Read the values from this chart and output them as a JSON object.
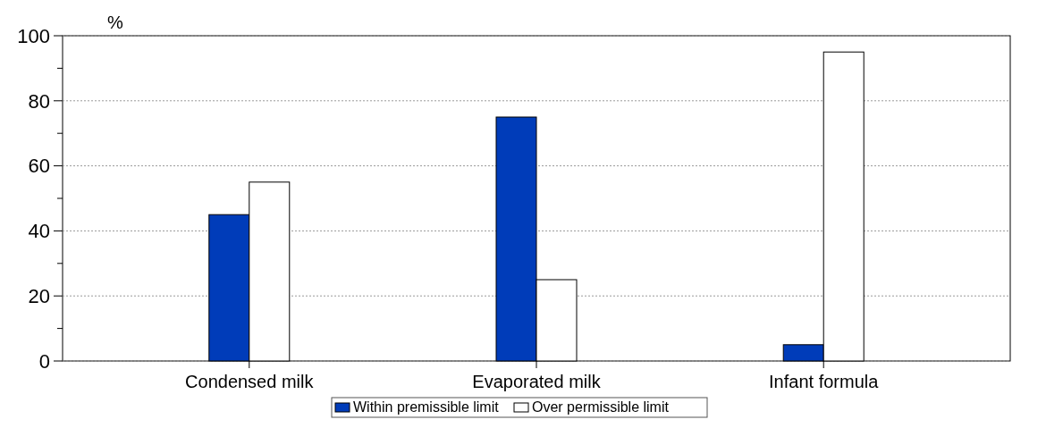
{
  "chart_data": {
    "type": "bar",
    "ylabel": "%",
    "categories": [
      "Condensed milk",
      "Evaporated milk",
      "Infant formula"
    ],
    "series": [
      {
        "name": "Within premissible limit",
        "color": "#003cb9",
        "values": [
          45,
          75,
          5
        ]
      },
      {
        "name": "Over permissible limit",
        "color": "#ffffff",
        "values": [
          55,
          25,
          95
        ]
      }
    ],
    "ylim": [
      0,
      100
    ],
    "yticks": [
      0,
      20,
      40,
      60,
      80,
      100
    ],
    "grid": "y",
    "legend": "bottom"
  }
}
